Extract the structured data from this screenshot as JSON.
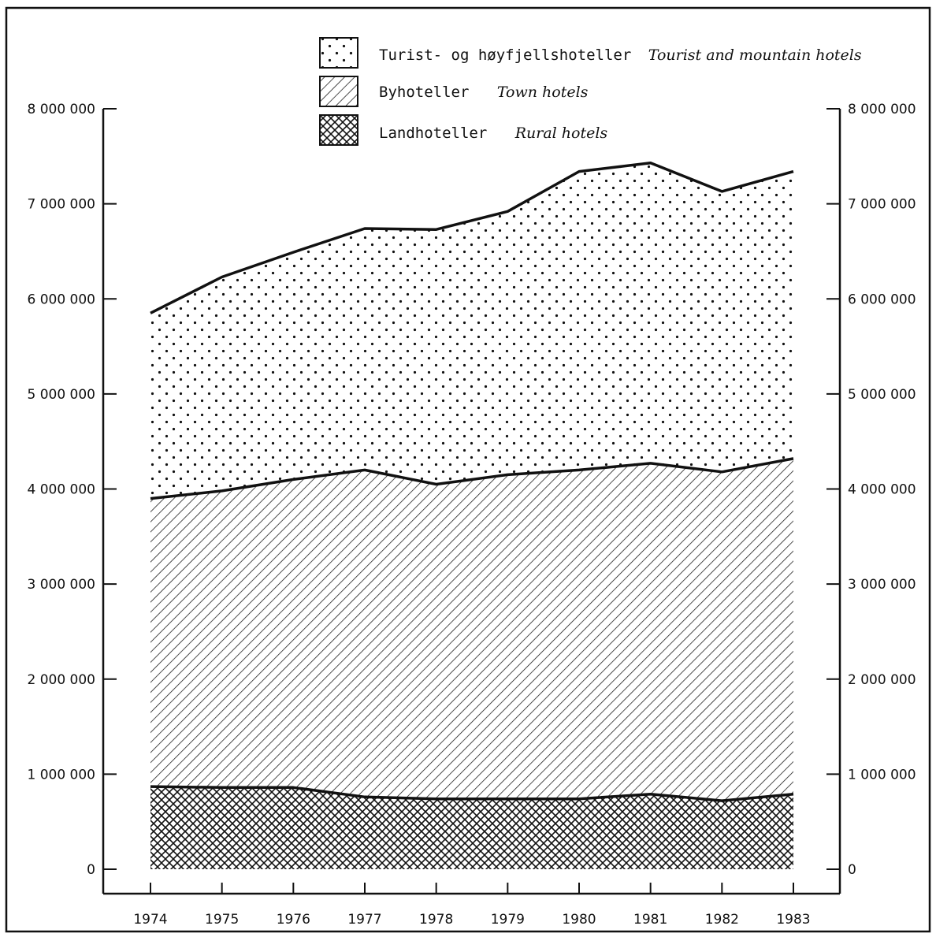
{
  "chart_data": {
    "type": "area",
    "stacked": true,
    "x": [
      1974,
      1975,
      1976,
      1977,
      1978,
      1979,
      1980,
      1981,
      1982,
      1983
    ],
    "series": [
      {
        "name_no": "Landhoteller",
        "name_en": "Rural hotels",
        "pattern": "crosshatch",
        "values": [
          870000,
          860000,
          860000,
          760000,
          740000,
          740000,
          740000,
          790000,
          720000,
          790000
        ]
      },
      {
        "name_no": "Byhoteller",
        "name_en": "Town hotels",
        "pattern": "diagonal-hatch",
        "values": [
          3030000,
          3120000,
          3240000,
          3440000,
          3310000,
          3410000,
          3460000,
          3480000,
          3460000,
          3530000
        ]
      },
      {
        "name_no": "Turist- og høyfjellshoteller",
        "name_en": "Tourist and mountain hotels",
        "pattern": "dots",
        "values": [
          1950000,
          2250000,
          2390000,
          2540000,
          2680000,
          2770000,
          3140000,
          3160000,
          2950000,
          3020000
        ]
      }
    ],
    "totals": [
      5850000,
      6230000,
      6490000,
      6740000,
      6730000,
      6920000,
      7340000,
      7430000,
      7130000,
      7340000
    ],
    "ylim": [
      0,
      8000000
    ],
    "y_ticks": [
      0,
      1000000,
      2000000,
      3000000,
      4000000,
      5000000,
      6000000,
      7000000,
      8000000
    ],
    "y_tick_labels": [
      "0",
      "1 000 000",
      "2 000 000",
      "3 000 000",
      "4 000 000",
      "5 000 000",
      "6 000 000",
      "7 000 000",
      "8 000 000"
    ],
    "x_tick_labels": [
      "1974",
      "1975",
      "1976",
      "1977",
      "1978",
      "1979",
      "1980",
      "1981",
      "1982",
      "1983"
    ],
    "y_axis_right": true,
    "grid": false,
    "legend_position": "top-right",
    "colors": {
      "ink": "#111111",
      "background": "#ffffff"
    }
  }
}
